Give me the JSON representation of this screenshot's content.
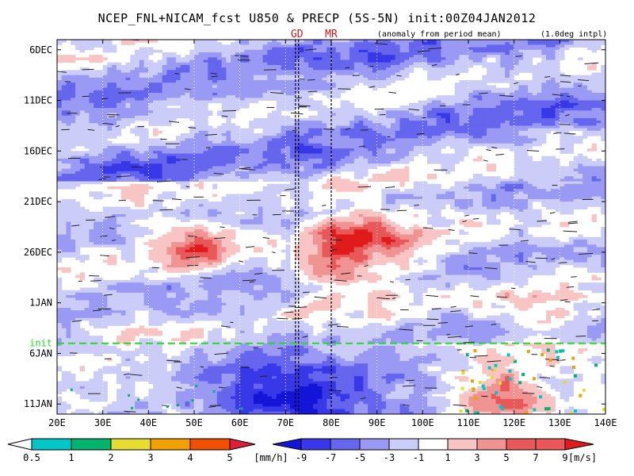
{
  "figure": {
    "title": "NCEP_FNL+NICAM_fcst U850 & PRECP (5S-5N) init:00Z04JAN2012",
    "anomaly_note": "(anomaly from period mean)",
    "interp_note": "(1.0deg intpl)"
  },
  "chart_data": {
    "type": "heatmap",
    "title": "NCEP_FNL+NICAM_fcst U850 & PRECP (5S-5N) init:00Z04JAN2012",
    "subtitle": "(anomaly from period mean)",
    "note": "(1.0deg intpl)",
    "x_ticks": [
      "20E",
      "30E",
      "40E",
      "50E",
      "60E",
      "70E",
      "80E",
      "90E",
      "100E",
      "110E",
      "120E",
      "130E",
      "140E"
    ],
    "x_range_deg": [
      20,
      140
    ],
    "y_ticks": [
      "6DEC",
      "11DEC",
      "16DEC",
      "21DEC",
      "26DEC",
      "1JAN",
      "6JAN",
      "11JAN"
    ],
    "y_range_days_from_6DEC": [
      -1,
      36
    ],
    "grid": true,
    "init_marker": {
      "label": "init",
      "day": 29,
      "color": "#22dd22"
    },
    "vertical_markers": [
      {
        "label": "GD",
        "lon": 72.5
      },
      {
        "label": "MR",
        "lon": 80
      }
    ],
    "fields": [
      {
        "name": "U850",
        "units": "[m/s]",
        "levels": [
          -9,
          -7,
          -5,
          -3,
          -1,
          1,
          3,
          5,
          7,
          9
        ],
        "colors": [
          "#1515d8",
          "#3838e8",
          "#6565ee",
          "#9a9af4",
          "#ccccf8",
          "#ffffff",
          "#f8c4c4",
          "#f09393",
          "#e85858",
          "#e01b1b"
        ],
        "features": [
          {
            "lon_range": [
              42,
              58
            ],
            "day_range": [
              17,
              22
            ],
            "value": 5
          },
          {
            "lon_range": [
              72,
              100
            ],
            "day_range": [
              14,
              25
            ],
            "value": 7
          },
          {
            "lon_range": [
              84,
              96
            ],
            "day_range": [
              16,
              20
            ],
            "value": 9
          },
          {
            "lon_range": [
              62,
              100
            ],
            "day_range": [
              30,
              36
            ],
            "value": -7
          },
          {
            "lon_range": [
              108,
              125
            ],
            "day_range": [
              31,
              36
            ],
            "value": 7
          },
          {
            "lon_range": [
              20,
              140
            ],
            "day_range": [
              0,
              13
            ],
            "value": -3
          }
        ]
      },
      {
        "name": "PRECP",
        "units": "[mm/h]",
        "levels": [
          0.5,
          1,
          2,
          3,
          4,
          5
        ],
        "colors": [
          "#ffffff",
          "#00c8c8",
          "#00b46e",
          "#e6dc32",
          "#f0a000",
          "#f05000",
          "#e01e3c"
        ]
      }
    ]
  },
  "colorbars": {
    "precip": {
      "labels": [
        "0.5",
        "1",
        "2",
        "3",
        "4",
        "5"
      ],
      "units": "[mm/h]"
    },
    "wind": {
      "labels": [
        "-9",
        "-7",
        "-5",
        "-3",
        "-1",
        "1",
        "3",
        "5",
        "7",
        "9"
      ],
      "units": "[m/s]"
    }
  }
}
